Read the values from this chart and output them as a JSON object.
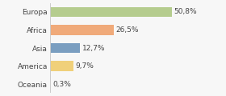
{
  "categories": [
    "Europa",
    "Africa",
    "Asia",
    "America",
    "Oceania"
  ],
  "values": [
    50.8,
    26.5,
    12.7,
    9.7,
    0.3
  ],
  "labels": [
    "50,8%",
    "26,5%",
    "12,7%",
    "9,7%",
    "0,3%"
  ],
  "bar_colors": [
    "#b5cc8e",
    "#f0aa7a",
    "#7a9ec0",
    "#f0d07a",
    "#e8a0a0"
  ],
  "background_color": "#f7f7f7",
  "xlim": [
    0,
    62
  ],
  "label_fontsize": 6.5,
  "tick_fontsize": 6.5,
  "bar_height": 0.55
}
